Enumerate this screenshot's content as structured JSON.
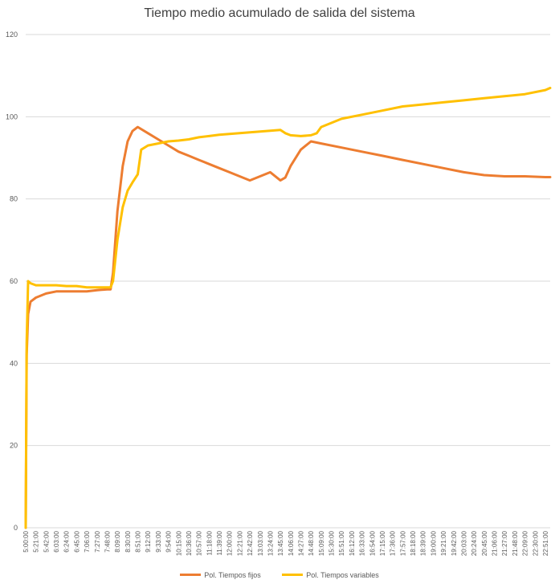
{
  "chart_data": {
    "type": "line",
    "title": "Tiempo medio acumulado de salida del sistema",
    "xlabel": "",
    "ylabel": "",
    "ylim": [
      0,
      120
    ],
    "yticks": [
      0,
      20,
      40,
      60,
      80,
      100,
      120
    ],
    "x_tick_labels": [
      "5:00:00",
      "5:21:00",
      "5:42:00",
      "6:03:00",
      "6:24:00",
      "6:45:00",
      "7:06:00",
      "7:27:00",
      "7:48:00",
      "8:09:00",
      "8:30:00",
      "8:51:00",
      "9:12:00",
      "9:33:00",
      "9:54:00",
      "10:15:00",
      "10:36:00",
      "10:57:00",
      "11:18:00",
      "11:39:00",
      "12:00:00",
      "12:21:00",
      "12:42:00",
      "13:03:00",
      "13:24:00",
      "13:45:00",
      "14:06:00",
      "14:27:00",
      "14:48:00",
      "15:09:00",
      "15:30:00",
      "15:51:00",
      "16:12:00",
      "16:33:00",
      "16:54:00",
      "17:15:00",
      "17:36:00",
      "17:57:00",
      "18:18:00",
      "18:39:00",
      "19:00:00",
      "19:21:00",
      "19:42:00",
      "20:03:00",
      "20:24:00",
      "20:45:00",
      "21:06:00",
      "21:27:00",
      "21:48:00",
      "22:09:00",
      "22:30:00",
      "22:51:00"
    ],
    "grid": true,
    "legend_position": "bottom",
    "series": [
      {
        "name": "Pol. Tiempos fijos",
        "color": "#ED7D31",
        "x": [
          "5:00:00",
          "5:02:00",
          "5:05:00",
          "5:10:00",
          "5:21:00",
          "5:42:00",
          "6:03:00",
          "6:24:00",
          "6:45:00",
          "7:06:00",
          "7:27:00",
          "7:48:00",
          "7:55:00",
          "8:00:00",
          "8:09:00",
          "8:20:00",
          "8:30:00",
          "8:40:00",
          "8:51:00",
          "9:12:00",
          "9:33:00",
          "9:54:00",
          "10:15:00",
          "10:36:00",
          "10:57:00",
          "11:18:00",
          "11:39:00",
          "12:00:00",
          "12:21:00",
          "12:42:00",
          "13:03:00",
          "13:24:00",
          "13:45:00",
          "13:55:00",
          "14:06:00",
          "14:27:00",
          "14:48:00",
          "15:09:00",
          "15:51:00",
          "16:33:00",
          "17:15:00",
          "17:57:00",
          "18:39:00",
          "19:21:00",
          "20:03:00",
          "20:45:00",
          "21:27:00",
          "22:09:00",
          "22:51:00",
          "23:01:00"
        ],
        "y": [
          0,
          42,
          52,
          55,
          56,
          57,
          57.5,
          57.5,
          57.5,
          57.5,
          57.8,
          58,
          58,
          62,
          77,
          88,
          94,
          96.5,
          97.5,
          96,
          94.5,
          93,
          91.5,
          90.5,
          89.5,
          88.5,
          87.5,
          86.5,
          85.5,
          84.5,
          85.5,
          86.5,
          84.5,
          85.2,
          88,
          92,
          94,
          93.5,
          92.5,
          91.5,
          90.5,
          89.5,
          88.5,
          87.5,
          86.5,
          85.8,
          85.5,
          85.5,
          85.3,
          85.3
        ]
      },
      {
        "name": "Pol. Tiempos variables",
        "color": "#FFC000",
        "x": [
          "5:00:00",
          "5:02:00",
          "5:05:00",
          "5:10:00",
          "5:21:00",
          "5:42:00",
          "6:03:00",
          "6:24:00",
          "6:45:00",
          "7:06:00",
          "7:27:00",
          "7:48:00",
          "7:55:00",
          "8:00:00",
          "8:09:00",
          "8:20:00",
          "8:30:00",
          "8:40:00",
          "8:51:00",
          "8:58:00",
          "9:12:00",
          "9:33:00",
          "9:54:00",
          "10:15:00",
          "10:36:00",
          "10:57:00",
          "11:18:00",
          "11:39:00",
          "12:00:00",
          "12:21:00",
          "12:42:00",
          "13:03:00",
          "13:24:00",
          "13:45:00",
          "13:55:00",
          "14:06:00",
          "14:27:00",
          "14:48:00",
          "15:00:00",
          "15:09:00",
          "15:30:00",
          "15:51:00",
          "16:33:00",
          "17:15:00",
          "17:57:00",
          "18:39:00",
          "19:21:00",
          "20:03:00",
          "20:45:00",
          "21:27:00",
          "22:09:00",
          "22:51:00",
          "23:01:00"
        ],
        "y": [
          0,
          45,
          60,
          59.5,
          59,
          59,
          59,
          58.8,
          58.8,
          58.5,
          58.5,
          58.5,
          58.5,
          60,
          70,
          78,
          82,
          84,
          86,
          92,
          93,
          93.5,
          94,
          94.2,
          94.5,
          95,
          95.3,
          95.6,
          95.8,
          96,
          96.2,
          96.4,
          96.6,
          96.8,
          96,
          95.5,
          95.3,
          95.5,
          96,
          97.5,
          98.5,
          99.5,
          100.5,
          101.5,
          102.5,
          103,
          103.5,
          104,
          104.5,
          105,
          105.5,
          106.5,
          107
        ]
      }
    ]
  }
}
